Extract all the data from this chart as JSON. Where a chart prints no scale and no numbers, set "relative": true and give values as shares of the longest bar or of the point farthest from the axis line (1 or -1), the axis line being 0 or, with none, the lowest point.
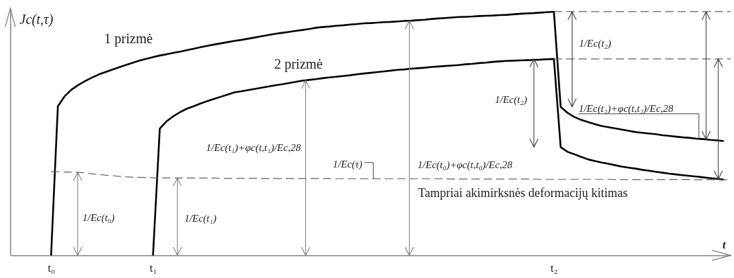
{
  "chart_data": {
    "type": "line",
    "relative": true,
    "ylabel": "Jc(t,τ)",
    "xlabel": "t",
    "tick_labels": "x",
    "categories": [
      null,
      null,
      null,
      null,
      null,
      null,
      "t₀",
      null,
      null,
      null,
      null,
      null,
      null,
      null,
      null,
      null,
      null,
      null,
      null,
      null,
      null,
      "t₁",
      null,
      null,
      null,
      null,
      null,
      null,
      null,
      null,
      null,
      null,
      null,
      null,
      null,
      null,
      null,
      null,
      null,
      null,
      null,
      null,
      null,
      null,
      null,
      null,
      null,
      null,
      null,
      null,
      null,
      null,
      null,
      null,
      null,
      null,
      null,
      null,
      null,
      null,
      null,
      null,
      null,
      null,
      null,
      null,
      null,
      null,
      null,
      null,
      null,
      null,
      null,
      null,
      null,
      null,
      null,
      null,
      null,
      null,
      "t₂",
      null,
      null,
      null,
      null,
      null,
      null,
      null,
      null,
      null,
      null,
      null,
      null,
      null,
      null,
      null,
      null,
      null,
      null,
      null,
      null,
      null,
      null,
      null,
      null,
      null,
      null
    ],
    "series": [
      {
        "name": "1 prizmė",
        "color": "#000000",
        "values": [
          null,
          null,
          null,
          null,
          null,
          null,
          0,
          0.612,
          0.653,
          0.68,
          0.699,
          0.715,
          0.729,
          0.742,
          0.752,
          0.762,
          0.772,
          0.781,
          0.79,
          0.799,
          0.806,
          0.813,
          0.82,
          0.825,
          0.831,
          0.836,
          0.842,
          0.848,
          0.854,
          0.86,
          0.865,
          0.87,
          0.875,
          0.88,
          0.884,
          0.889,
          0.894,
          0.899,
          0.904,
          0.909,
          0.913,
          0.917,
          0.921,
          0.925,
          0.929,
          0.934,
          0.937,
          0.939,
          0.942,
          0.944,
          0.947,
          0.949,
          0.952,
          0.953,
          0.955,
          0.957,
          0.958,
          0.96,
          0.962,
          0.963,
          0.965,
          0.967,
          0.97,
          0.972,
          0.974,
          0.976,
          0.978,
          0.979,
          0.98,
          0.982,
          0.983,
          0.984,
          0.986,
          0.987,
          0.989,
          0.991,
          0.993,
          0.994,
          0.996,
          0.998,
          1.0,
          0.609,
          0.585,
          0.568,
          0.556,
          0.547,
          0.539,
          0.531,
          0.526,
          0.521,
          0.516,
          0.511,
          0.506,
          0.503,
          0.5,
          0.497,
          0.493,
          0.49,
          0.487,
          0.484,
          0.482,
          0.479,
          0.477,
          0.474,
          0.472,
          0.469,
          null
        ]
      },
      {
        "name": "2 prizmė",
        "color": "#000000",
        "values": [
          null,
          null,
          null,
          null,
          null,
          null,
          null,
          null,
          null,
          null,
          null,
          null,
          null,
          null,
          null,
          null,
          null,
          null,
          null,
          null,
          null,
          0,
          0.52,
          0.55,
          0.571,
          0.588,
          0.602,
          0.612,
          0.623,
          0.633,
          0.642,
          0.651,
          0.66,
          0.669,
          0.673,
          0.678,
          0.683,
          0.688,
          0.693,
          0.698,
          0.702,
          0.707,
          0.712,
          0.717,
          0.72,
          0.723,
          0.727,
          0.73,
          0.733,
          0.736,
          0.739,
          0.743,
          0.746,
          0.749,
          0.752,
          0.755,
          0.758,
          0.761,
          0.763,
          0.766,
          0.768,
          0.77,
          0.773,
          0.775,
          0.777,
          0.779,
          0.781,
          0.784,
          0.786,
          0.789,
          0.791,
          0.794,
          0.796,
          0.798,
          0.799,
          0.8,
          0.801,
          0.802,
          0.803,
          0.805,
          0.806,
          0.444,
          0.425,
          0.415,
          0.404,
          0.394,
          0.387,
          0.381,
          0.376,
          0.37,
          0.364,
          0.36,
          0.356,
          0.351,
          0.347,
          0.343,
          0.339,
          0.335,
          0.332,
          0.329,
          0.326,
          0.323,
          0.32,
          0.317,
          0.314,
          0.311,
          null
        ]
      },
      {
        "name": "Tampriai akimirksnės deformacijų kitimas",
        "color": "#606060",
        "line_style": "dashed",
        "values": [
          null,
          null,
          null,
          null,
          null,
          null,
          0.344,
          0.343,
          0.342,
          0.341,
          0.341,
          0.338,
          0.335,
          0.332,
          0.329,
          0.327,
          0.324,
          0.322,
          0.321,
          0.32,
          0.319,
          0.318,
          0.318,
          0.318,
          0.318,
          0.317,
          0.317,
          0.317,
          0.317,
          0.317,
          0.317,
          0.316,
          0.316,
          0.316,
          0.316,
          0.316,
          0.316,
          0.315,
          0.315,
          0.315,
          0.315,
          0.315,
          0.315,
          0.315,
          0.315,
          0.315,
          0.315,
          0.315,
          0.314,
          0.314,
          0.314,
          0.314,
          0.314,
          0.314,
          0.314,
          0.314,
          0.314,
          0.314,
          0.314,
          0.314,
          0.314,
          0.314,
          0.314,
          0.314,
          0.314,
          0.313,
          0.313,
          0.313,
          0.313,
          0.313,
          0.313,
          0.313,
          0.313,
          0.313,
          0.313,
          0.313,
          0.313,
          0.313,
          0.312,
          0.312,
          0.312,
          0.312,
          0.312,
          0.312,
          0.312,
          0.312,
          0.312,
          0.312,
          0.312,
          0.311,
          0.311,
          0.311,
          0.311,
          0.311,
          0.311,
          0.311,
          0.311,
          0.311,
          0.311,
          0.311,
          0.311,
          0.31,
          0.31,
          0.31,
          0.31,
          0.31,
          0.31
        ]
      },
      {
        "color": "#606060",
        "line_style": "dashed",
        "values": [
          null,
          null,
          null,
          null,
          null,
          null,
          null,
          null,
          null,
          null,
          null,
          null,
          null,
          null,
          null,
          null,
          null,
          null,
          null,
          null,
          null,
          null,
          null,
          null,
          null,
          null,
          null,
          null,
          null,
          null,
          null,
          null,
          null,
          null,
          null,
          null,
          null,
          null,
          null,
          null,
          null,
          null,
          null,
          null,
          null,
          null,
          null,
          null,
          null,
          null,
          null,
          null,
          null,
          null,
          null,
          null,
          null,
          null,
          null,
          null,
          null,
          null,
          null,
          null,
          null,
          null,
          null,
          null,
          null,
          null,
          null,
          null,
          null,
          null,
          null,
          null,
          null,
          null,
          null,
          null,
          1.0,
          1.0,
          1.0,
          1.0,
          1.0,
          1.0,
          1.0,
          1.0,
          1.0,
          1.0,
          1.0,
          1.0,
          1.0,
          1.0,
          1.0,
          1.0,
          1.0,
          1.0,
          1.0,
          1.0,
          1.0,
          1.0,
          1.0,
          1.0,
          1.0,
          1.0,
          1.0
        ]
      },
      {
        "color": "#606060",
        "line_style": "dashed",
        "values": [
          null,
          null,
          null,
          null,
          null,
          null,
          null,
          null,
          null,
          null,
          null,
          null,
          null,
          null,
          null,
          null,
          null,
          null,
          null,
          null,
          null,
          null,
          null,
          null,
          null,
          null,
          null,
          null,
          null,
          null,
          null,
          null,
          null,
          null,
          null,
          null,
          null,
          null,
          null,
          null,
          null,
          null,
          null,
          null,
          null,
          null,
          null,
          null,
          null,
          null,
          null,
          null,
          null,
          null,
          null,
          null,
          null,
          null,
          null,
          null,
          null,
          null,
          null,
          null,
          null,
          null,
          null,
          null,
          null,
          null,
          null,
          null,
          null,
          null,
          null,
          null,
          null,
          null,
          null,
          null,
          0.806,
          0.806,
          0.806,
          0.806,
          0.806,
          0.806,
          0.806,
          0.806,
          0.806,
          0.806,
          0.806,
          0.806,
          0.806,
          0.806,
          0.806,
          0.806,
          0.806,
          0.806,
          0.806,
          0.806,
          0.806,
          0.806,
          0.806,
          0.806,
          0.806,
          0.806,
          0.806
        ]
      }
    ],
    "annotations": [
      "1/Ec(t₀)",
      "1/Ec(t₁)",
      "1/Ec(t₁)+φc(t,t₁)/Ec,28",
      "1/Ec(τ)",
      "1/Ec(t₀)+φc(t,t₀)/Ec,28",
      "1/Ec(t₂)",
      "1/Ec(t₂)",
      "1/Ec(t₂)+φc(t,t₂)/Ec,28"
    ]
  }
}
